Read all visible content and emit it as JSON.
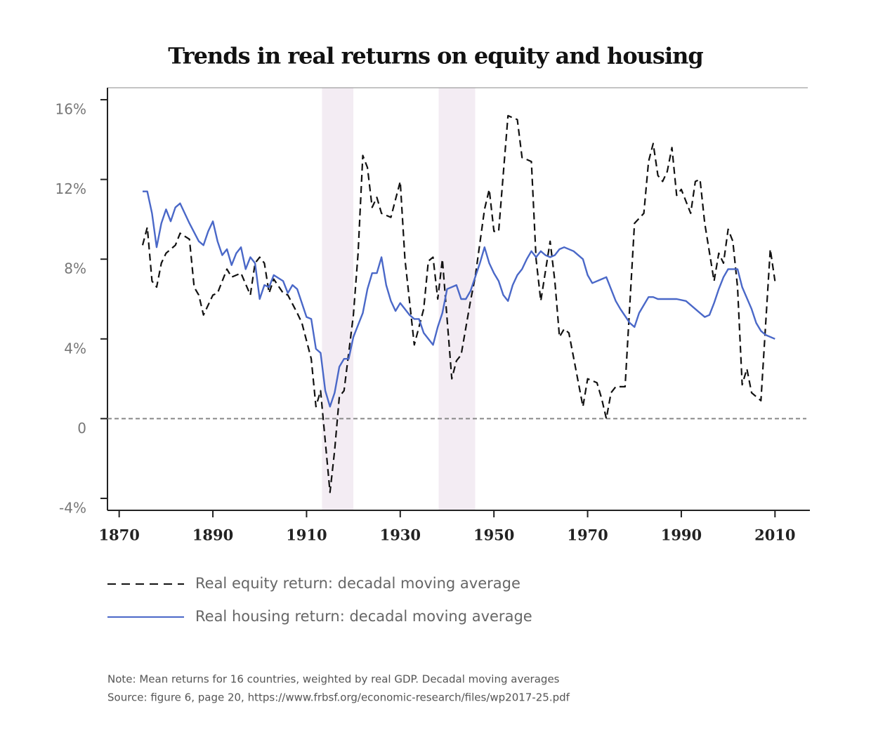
{
  "chart_data": {
    "type": "line",
    "title": "Trends in real returns on equity and housing",
    "notes": [
      "Note: Mean returns for 16 countries, weighted by real GDP. Decadal moving averages",
      "Source: figure 6, page 20, https://www.frbsf.org/economic-research/files/wp2017-25.pdf"
    ],
    "xlim": [
      1867.5,
      2017
    ],
    "xticks": [
      1870,
      1890,
      1910,
      1930,
      1950,
      1970,
      1990,
      2010
    ],
    "ylim": [
      -4.6,
      16.6
    ],
    "yticks": [
      {
        "value": -4,
        "label": "-4%"
      },
      0,
      {
        "value": 4,
        "label": "4%"
      },
      {
        "value": 8,
        "label": "8%"
      },
      {
        "value": 12,
        "label": "12%"
      },
      {
        "value": 16,
        "label": "16%"
      }
    ],
    "reference_line": 0,
    "shaded_ranges": [
      [
        1913.3,
        1920
      ],
      [
        1938.2,
        1946
      ]
    ],
    "shade_color": "#f3ecf3",
    "series": [
      {
        "name": "Real equity return: decadal moving average",
        "color": "#111111",
        "dash": true,
        "x": [
          1875,
          1876,
          1877,
          1878,
          1879,
          1880,
          1882,
          1883,
          1885,
          1886,
          1887,
          1888,
          1890,
          1891,
          1893,
          1894,
          1896,
          1898,
          1899,
          1900,
          1901,
          1902,
          1903,
          1905,
          1906,
          1908,
          1909,
          1911,
          1912,
          1913,
          1915,
          1916,
          1917,
          1918,
          1920,
          1921,
          1922,
          1923,
          1924,
          1925,
          1926,
          1928,
          1929,
          1930,
          1931,
          1933,
          1935,
          1936,
          1937,
          1938,
          1939,
          1941,
          1942,
          1943,
          1945,
          1946,
          1948,
          1949,
          1950,
          1951,
          1953,
          1955,
          1956,
          1958,
          1959,
          1960,
          1962,
          1963,
          1964,
          1965,
          1966,
          1969,
          1970,
          1972,
          1973,
          1974,
          1975,
          1976,
          1978,
          1980,
          1982,
          1983,
          1984,
          1985,
          1986,
          1987,
          1988,
          1989,
          1990,
          1992,
          1993,
          1994,
          1995,
          1997,
          1998,
          1999,
          2000,
          2001,
          2002,
          2003,
          2004,
          2005,
          2007,
          2009,
          2010
        ],
        "values": [
          8.7,
          9.6,
          6.9,
          6.6,
          7.8,
          8.3,
          8.7,
          9.3,
          9.0,
          6.6,
          6.2,
          5.2,
          6.2,
          6.3,
          7.5,
          7.1,
          7.3,
          6.2,
          7.8,
          8.1,
          7.8,
          6.3,
          7.0,
          6.3,
          6.2,
          5.3,
          4.8,
          3.0,
          0.6,
          1.4,
          -3.7,
          -1.6,
          1.1,
          1.4,
          5.2,
          8.3,
          13.2,
          12.6,
          10.6,
          11.1,
          10.3,
          10.1,
          11.0,
          11.9,
          8.0,
          3.7,
          5.5,
          7.9,
          8.1,
          6.0,
          8.0,
          2.0,
          2.9,
          3.2,
          5.9,
          7.1,
          10.5,
          11.5,
          9.4,
          9.4,
          15.2,
          15.0,
          13.1,
          12.9,
          8.0,
          5.9,
          8.9,
          6.9,
          4.1,
          4.5,
          4.3,
          0.6,
          2.0,
          1.8,
          1.0,
          0.0,
          1.3,
          1.6,
          1.6,
          9.8,
          10.3,
          12.9,
          13.8,
          12.2,
          11.9,
          12.4,
          13.6,
          11.2,
          11.5,
          10.3,
          11.9,
          12.0,
          9.8,
          6.9,
          8.3,
          7.8,
          9.5,
          8.9,
          6.6,
          1.7,
          2.5,
          1.3,
          0.9,
          8.5,
          6.9
        ]
      },
      {
        "name": "Real housing return: decadal moving average",
        "color": "#4a68c8",
        "dash": false,
        "x": [
          1875,
          1876,
          1877,
          1878,
          1879,
          1880,
          1881,
          1882,
          1883,
          1885,
          1887,
          1888,
          1889,
          1890,
          1891,
          1892,
          1893,
          1894,
          1895,
          1896,
          1897,
          1898,
          1899,
          1900,
          1901,
          1902,
          1903,
          1905,
          1906,
          1907,
          1908,
          1910,
          1911,
          1912,
          1913,
          1914,
          1915,
          1916,
          1917,
          1918,
          1919,
          1920,
          1922,
          1923,
          1924,
          1925,
          1926,
          1927,
          1928,
          1929,
          1930,
          1932,
          1933,
          1934,
          1935,
          1937,
          1938,
          1939,
          1940,
          1942,
          1943,
          1944,
          1945,
          1947,
          1948,
          1949,
          1950,
          1951,
          1952,
          1953,
          1954,
          1955,
          1956,
          1957,
          1958,
          1959,
          1960,
          1961,
          1962,
          1963,
          1964,
          1965,
          1967,
          1969,
          1970,
          1971,
          1973,
          1974,
          1976,
          1977,
          1979,
          1980,
          1981,
          1982,
          1983,
          1984,
          1985,
          1986,
          1988,
          1989,
          1991,
          1993,
          1994,
          1995,
          1996,
          1997,
          1998,
          1999,
          2000,
          2001,
          2002,
          2003,
          2005,
          2006,
          2007,
          2008,
          2010
        ],
        "values": [
          11.4,
          11.4,
          10.3,
          8.6,
          9.8,
          10.5,
          9.9,
          10.6,
          10.8,
          9.8,
          8.9,
          8.7,
          9.4,
          9.9,
          8.9,
          8.2,
          8.5,
          7.7,
          8.3,
          8.6,
          7.5,
          8.1,
          7.8,
          6.0,
          6.7,
          6.6,
          7.2,
          6.9,
          6.3,
          6.7,
          6.5,
          5.1,
          5.0,
          3.5,
          3.3,
          1.4,
          0.6,
          1.3,
          2.6,
          3.0,
          3.0,
          4.1,
          5.3,
          6.5,
          7.3,
          7.3,
          8.1,
          6.7,
          5.9,
          5.4,
          5.8,
          5.2,
          5.0,
          5.0,
          4.3,
          3.7,
          4.6,
          5.3,
          6.5,
          6.7,
          6.0,
          6.0,
          6.4,
          7.8,
          8.6,
          7.8,
          7.3,
          6.9,
          6.2,
          5.9,
          6.7,
          7.2,
          7.5,
          8.0,
          8.4,
          8.1,
          8.4,
          8.2,
          8.1,
          8.2,
          8.5,
          8.6,
          8.4,
          8.0,
          7.2,
          6.8,
          7.0,
          7.1,
          5.9,
          5.5,
          4.8,
          4.6,
          5.3,
          5.7,
          6.1,
          6.1,
          6.0,
          6.0,
          6.0,
          6.0,
          5.9,
          5.5,
          5.3,
          5.1,
          5.2,
          5.8,
          6.5,
          7.1,
          7.5,
          7.5,
          7.5,
          6.6,
          5.5,
          4.8,
          4.4,
          4.2,
          4.0
        ]
      }
    ]
  }
}
